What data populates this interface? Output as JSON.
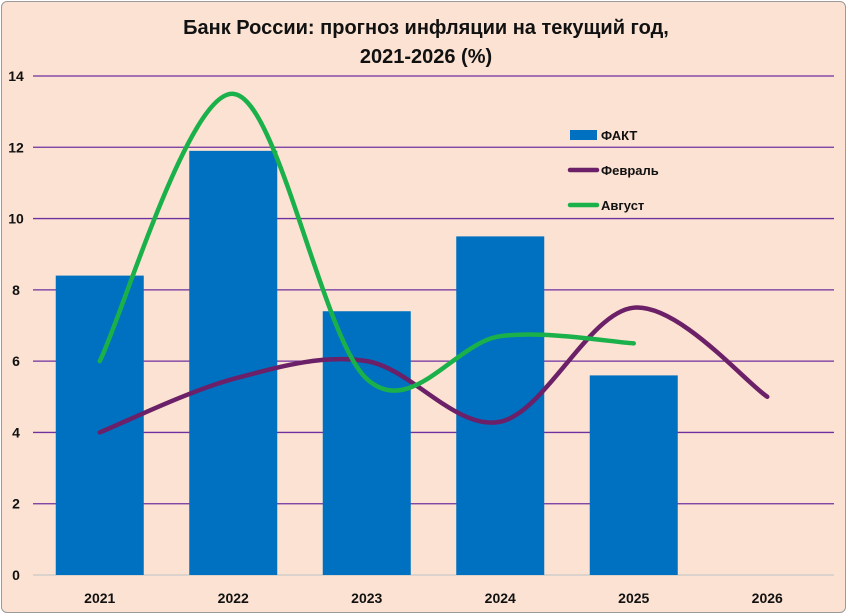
{
  "chart_data": {
    "type": "bar",
    "title": "Банк России: прогноз инфляции на текущий год,",
    "subtitle": "2021-2026 (%)",
    "categories": [
      "2021",
      "2022",
      "2023",
      "2024",
      "2025",
      "2026"
    ],
    "ylim": [
      0,
      14
    ],
    "yticks": [
      "0",
      "2",
      "4",
      "6",
      "8",
      "10",
      "12",
      "14"
    ],
    "grid": true,
    "legend_position": "right",
    "series": [
      {
        "name": "ФАКТ",
        "kind": "bar",
        "color": "#0070c0",
        "values": [
          8.4,
          11.9,
          7.4,
          9.5,
          5.6,
          null
        ]
      },
      {
        "name": "Февраль",
        "kind": "line",
        "color": "#6b2067",
        "values": [
          4.0,
          5.5,
          6.0,
          4.3,
          7.5,
          5.0
        ]
      },
      {
        "name": "Август",
        "kind": "line",
        "color": "#1ab04a",
        "values": [
          6.0,
          13.5,
          5.5,
          6.7,
          6.5,
          null
        ]
      }
    ],
    "colors": {
      "background": "#fbe2d2",
      "grid": "#7030a0"
    }
  }
}
